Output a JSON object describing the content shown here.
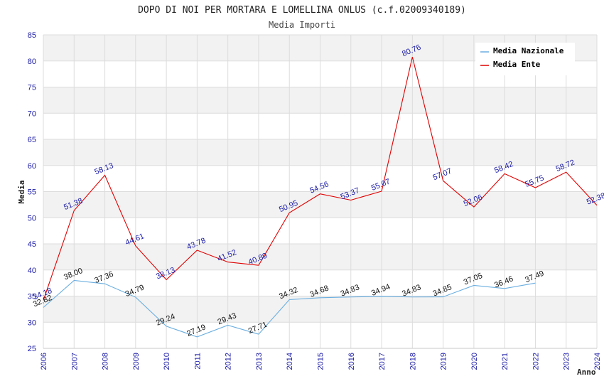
{
  "chart_data": {
    "type": "line",
    "title": "DOPO DI NOI PER MORTARA E LOMELLINA ONLUS (c.f.02009340189)",
    "subtitle": "Media Importi",
    "xlabel": "Anno",
    "ylabel": "Media",
    "ylim": [
      25,
      85
    ],
    "yticks": [
      "25",
      "30",
      "35",
      "40",
      "45",
      "50",
      "55",
      "60",
      "65",
      "70",
      "75",
      "80",
      "85"
    ],
    "categories": [
      "2006",
      "2007",
      "2008",
      "2009",
      "2010",
      "2011",
      "2012",
      "2013",
      "2014",
      "2015",
      "2016",
      "2017",
      "2018",
      "2019",
      "2020",
      "2021",
      "2022",
      "2023",
      "2024"
    ],
    "grid": true,
    "legend_position": "top-right",
    "series": [
      {
        "name": "Media Nazionale",
        "color": "#6aaee0",
        "values": [
          32.82,
          38.0,
          37.36,
          34.79,
          29.24,
          27.19,
          29.43,
          27.71,
          34.32,
          34.68,
          34.83,
          34.94,
          34.83,
          34.85,
          37.05,
          36.46,
          37.49,
          null,
          null
        ],
        "labels": [
          "32.82",
          "38.00",
          "37.36",
          "34.79",
          "29.24",
          "27.19",
          "29.43",
          "27.71",
          "34.32",
          "34.68",
          "34.83",
          "34.94",
          "34.83",
          "34.85",
          "37.05",
          "36.46",
          "37.49",
          null,
          null
        ]
      },
      {
        "name": "Media Ente",
        "color": "#e00000",
        "values": [
          34.18,
          51.38,
          58.13,
          44.61,
          38.13,
          43.78,
          41.52,
          40.89,
          50.95,
          54.56,
          53.37,
          55.07,
          80.76,
          57.07,
          52.06,
          58.42,
          55.75,
          58.72,
          52.38
        ],
        "labels": [
          "34.18",
          "51.38",
          "58.13",
          "44.61",
          "38.13",
          "43.78",
          "41.52",
          "40.89",
          "50.95",
          "54.56",
          "53.37",
          "55.07",
          "80.76",
          "57.07",
          "52.06",
          "58.42",
          "55.75",
          "58.72",
          "52.38"
        ]
      }
    ]
  }
}
